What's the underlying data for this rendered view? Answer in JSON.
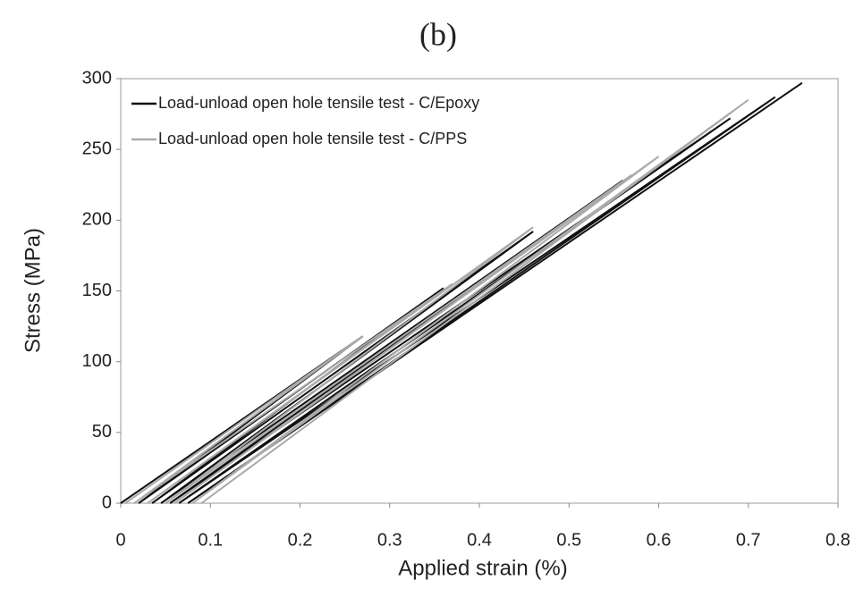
{
  "chart_data": {
    "type": "line",
    "title": "(b)",
    "x_label": "Applied strain (%)",
    "y_label": "Stress (MPa)",
    "xlim": [
      0,
      0.8
    ],
    "xticks": [
      0,
      0.1,
      0.2,
      0.3,
      0.4,
      0.5,
      0.6,
      0.7,
      0.8
    ],
    "ylim": [
      0,
      300
    ],
    "yticks": [
      0,
      50,
      100,
      150,
      200,
      250,
      300
    ],
    "legend": "upper left",
    "grid": false,
    "series": [
      {
        "name": "Load-unload open hole tensile test - C/Epoxy",
        "color": "#111111",
        "x": [
          0,
          0.27,
          0.02,
          0.36,
          0.035,
          0.46,
          0.045,
          0.56,
          0.055,
          0.68,
          0.065,
          0.73,
          0.075,
          0.76
        ],
        "values": [
          0,
          118,
          0,
          152,
          0,
          192,
          0,
          228,
          0,
          272,
          0,
          287,
          0,
          297
        ]
      },
      {
        "name": "Load-unload open hole tensile test - C/PPS",
        "color": "#aaaaaa",
        "x": [
          0.005,
          0.27,
          0.015,
          0.37,
          0.03,
          0.46,
          0.05,
          0.57,
          0.06,
          0.6,
          0.08,
          0.7,
          0.09
        ],
        "values": [
          0,
          118,
          0,
          155,
          0,
          195,
          0,
          232,
          0,
          245,
          0,
          285,
          0
        ]
      }
    ]
  }
}
